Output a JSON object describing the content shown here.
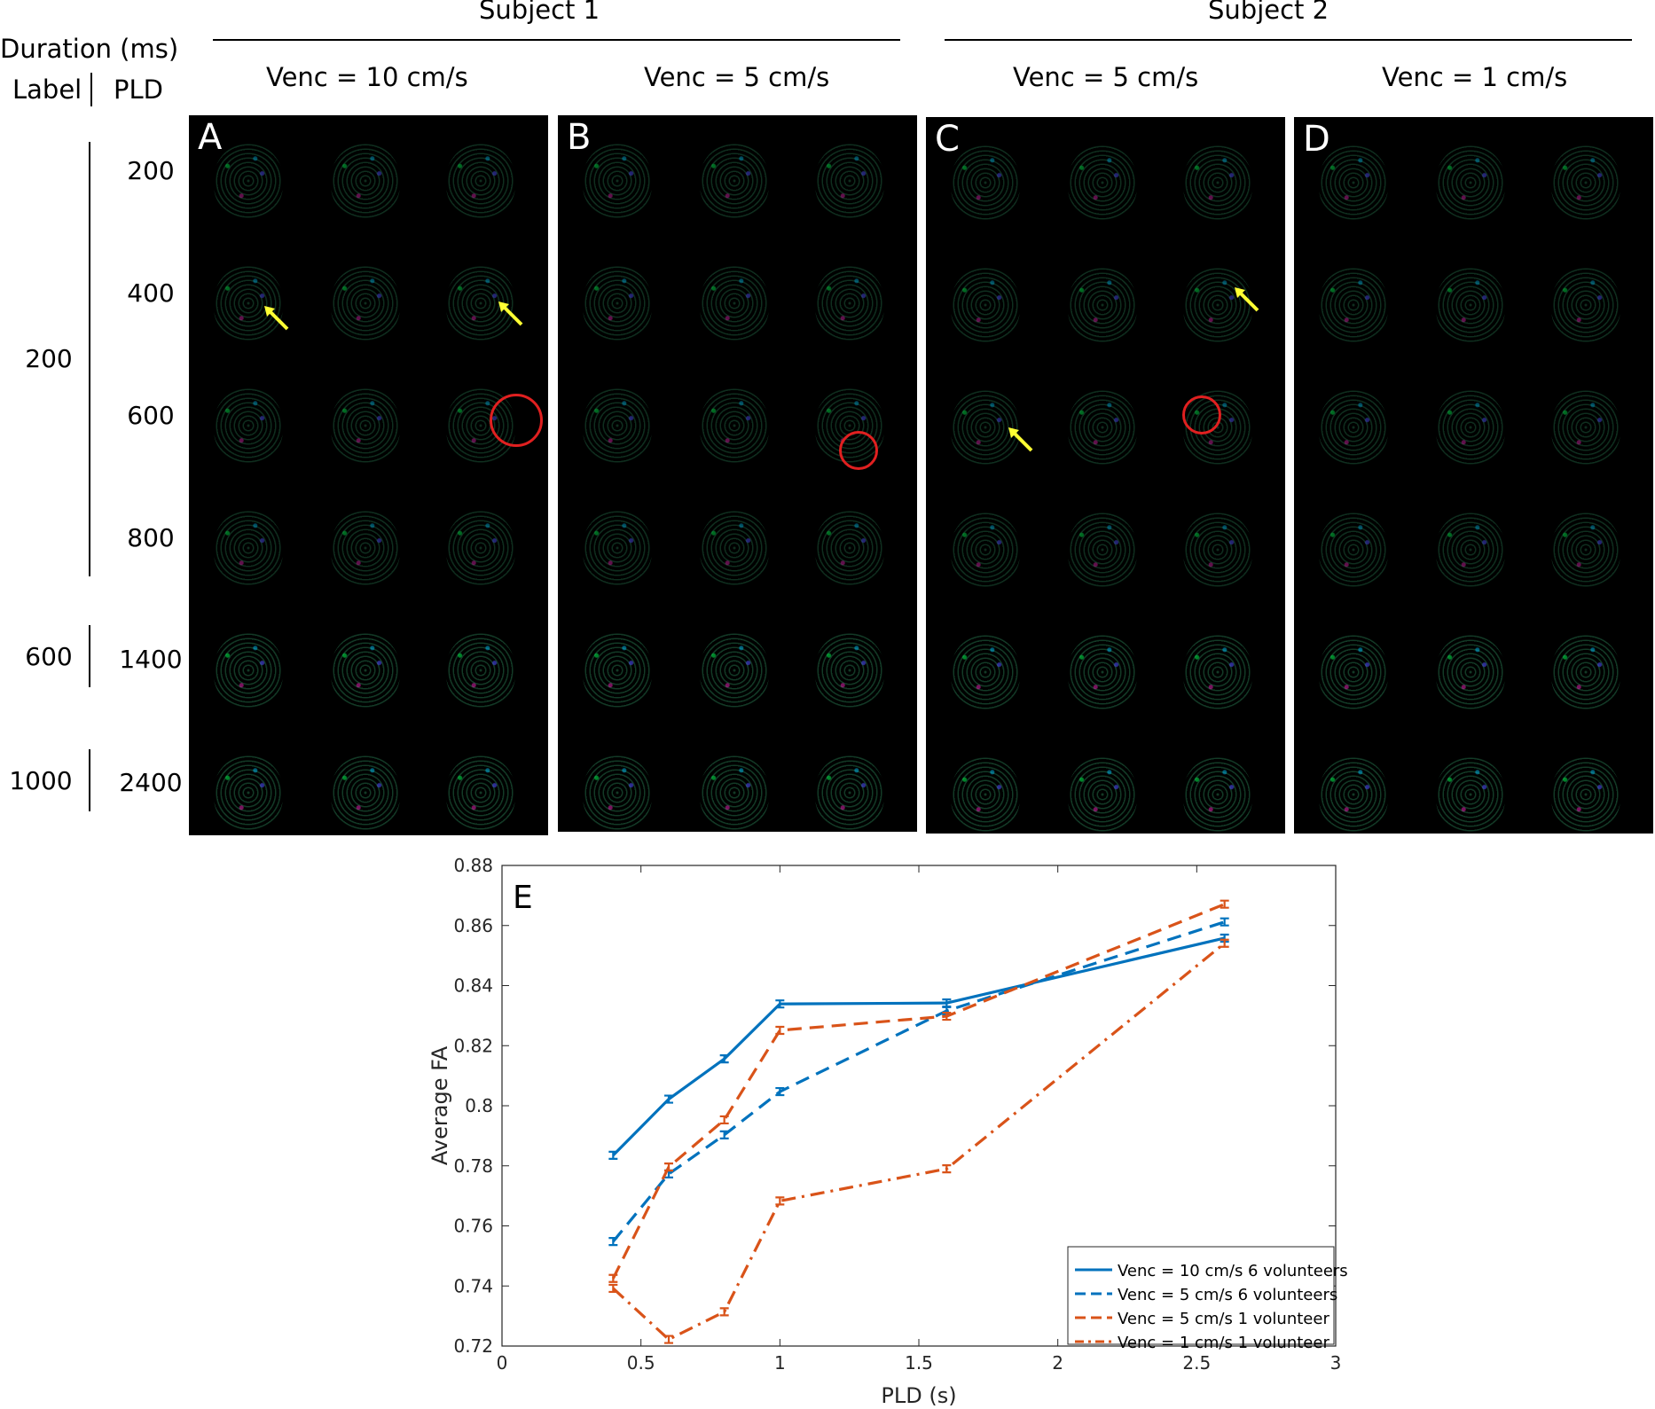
{
  "header": {
    "subject1": "Subject 1",
    "subject2": "Subject 2",
    "duration": "Duration (ms)",
    "label": "Label",
    "pld": "PLD",
    "venc": [
      "Venc = 10 cm/s",
      "Venc = 5 cm/s",
      "Venc = 5 cm/s",
      "Venc = 1 cm/s"
    ]
  },
  "rows": {
    "pld": [
      "200",
      "400",
      "600",
      "800",
      "1400",
      "2400"
    ],
    "label_duration": [
      "200",
      "600",
      "1000"
    ]
  },
  "panels": [
    "A",
    "B",
    "C",
    "D"
  ],
  "chart_data": {
    "type": "line",
    "panel_label": "E",
    "xlabel": "PLD (s)",
    "ylabel": "Average FA",
    "xlim": [
      0,
      3
    ],
    "ylim": [
      0.72,
      0.88
    ],
    "xticks": [
      "0",
      "0.5",
      "1",
      "1.5",
      "2",
      "2.5",
      "3"
    ],
    "yticks": [
      "0.72",
      "0.74",
      "0.76",
      "0.78",
      "0.8",
      "0.82",
      "0.84",
      "0.86",
      "0.88"
    ],
    "legend_position": "bottom-right",
    "series": [
      {
        "name": "Venc = 10 cm/s 6 volunteers",
        "style": "solid",
        "color": "#0072BD",
        "x": [
          0.4,
          0.6,
          0.8,
          1.0,
          1.6,
          2.6
        ],
        "y": [
          0.7835,
          0.8022,
          0.8156,
          0.8339,
          0.8342,
          0.8558
        ]
      },
      {
        "name": "Venc = 5 cm/s 6 volunteers",
        "style": "dashed",
        "color": "#0072BD",
        "x": [
          0.4,
          0.6,
          0.8,
          1.0,
          1.6,
          2.6
        ],
        "y": [
          0.7548,
          0.7773,
          0.7903,
          0.8047,
          0.8316,
          0.8612
        ]
      },
      {
        "name": "Venc = 5 cm/s 1 volunteer",
        "style": "dashed",
        "color": "#D95319",
        "x": [
          0.4,
          0.6,
          0.8,
          1.0,
          1.6,
          2.6
        ],
        "y": [
          0.7425,
          0.7796,
          0.7953,
          0.8251,
          0.8298,
          0.8671
        ]
      },
      {
        "name": "Venc = 1 cm/s 1 volunteer",
        "style": "dashdot",
        "color": "#D95319",
        "x": [
          0.4,
          0.6,
          0.8,
          1.0,
          1.6,
          2.6
        ],
        "y": [
          0.7392,
          0.7222,
          0.7314,
          0.7683,
          0.779,
          0.8541
        ]
      }
    ]
  }
}
